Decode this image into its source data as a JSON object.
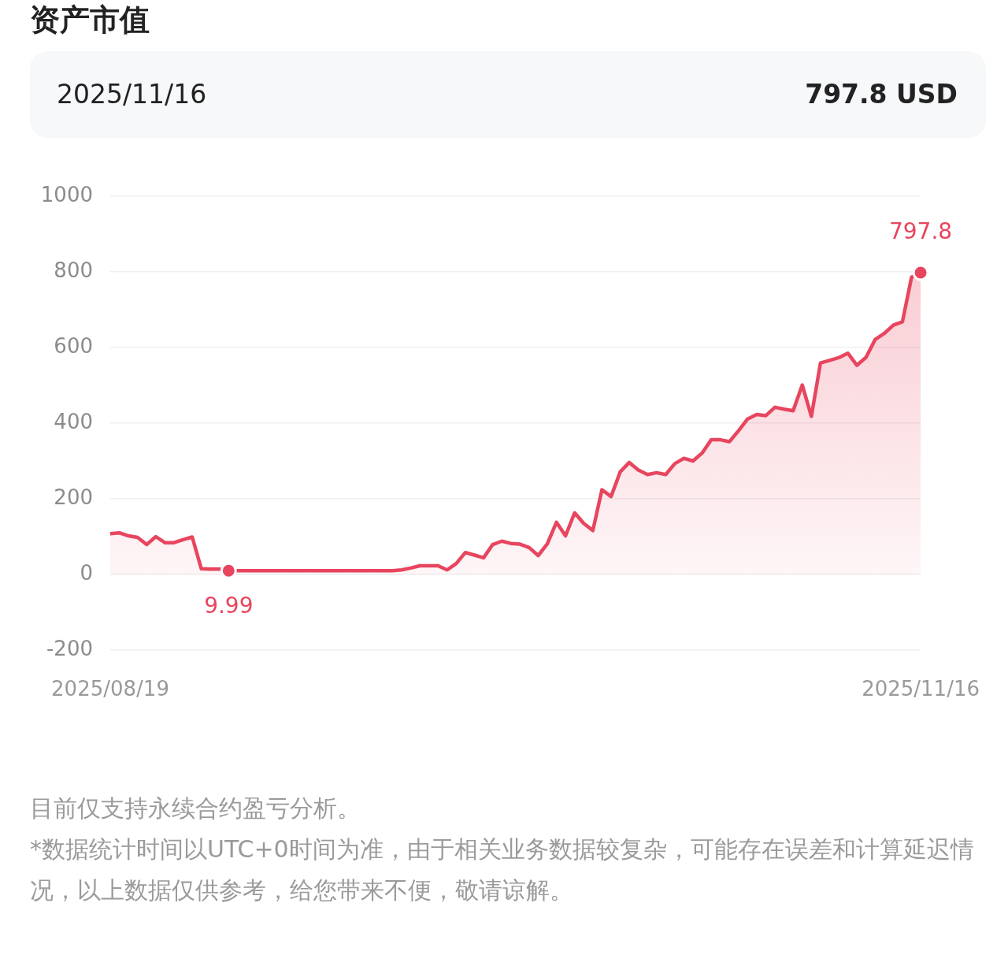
{
  "chart_data": {
    "type": "area",
    "title": "资产市值",
    "subtitle": "2025/11/16",
    "annotations": [
      "797.8 USD",
      {
        "text": "797.8",
        "x": "2025-11-16",
        "y": 797.8
      },
      {
        "text": "9.99",
        "x": "2025-09-01",
        "y": 9.99
      },
      "目前仅支持永续合约盈亏分析。",
      "*数据统计时间以UTC+0时间为准，由于相关业务数据较复杂，可能存在误差和计算延迟情况，以上数据仅供参考，给您带来不便，敬请谅解。"
    ],
    "x": [
      "2025-08-19",
      "2025-08-20",
      "2025-08-21",
      "2025-08-22",
      "2025-08-23",
      "2025-08-24",
      "2025-08-25",
      "2025-08-26",
      "2025-08-27",
      "2025-08-28",
      "2025-08-29",
      "2025-08-30",
      "2025-08-31",
      "2025-09-01",
      "2025-09-19",
      "2025-09-20",
      "2025-09-21",
      "2025-09-22",
      "2025-09-23",
      "2025-09-24",
      "2025-09-25",
      "2025-09-26",
      "2025-09-27",
      "2025-09-28",
      "2025-09-29",
      "2025-09-30",
      "2025-10-01",
      "2025-10-02",
      "2025-10-03",
      "2025-10-04",
      "2025-10-05",
      "2025-10-06",
      "2025-10-07",
      "2025-10-08",
      "2025-10-09",
      "2025-10-10",
      "2025-10-11",
      "2025-10-12",
      "2025-10-13",
      "2025-10-14",
      "2025-10-15",
      "2025-10-16",
      "2025-10-17",
      "2025-10-18",
      "2025-10-19",
      "2025-10-20",
      "2025-10-21",
      "2025-10-22",
      "2025-10-23",
      "2025-10-24",
      "2025-10-25",
      "2025-10-26",
      "2025-10-27",
      "2025-10-28",
      "2025-10-29",
      "2025-10-30",
      "2025-10-31",
      "2025-11-01",
      "2025-11-02",
      "2025-11-03",
      "2025-11-04",
      "2025-11-05",
      "2025-11-06",
      "2025-11-07",
      "2025-11-08",
      "2025-11-09",
      "2025-11-10",
      "2025-11-11",
      "2025-11-12",
      "2025-11-13",
      "2025-11-14",
      "2025-11-15",
      "2025-11-16"
    ],
    "values": [
      108,
      110,
      102,
      98,
      79,
      100,
      84,
      84,
      92,
      99,
      15,
      14,
      14,
      9.99,
      10,
      12,
      17,
      23,
      23,
      23,
      12,
      29,
      58,
      51,
      44,
      79,
      88,
      82,
      80,
      71,
      50,
      81,
      138,
      102,
      163,
      135,
      116,
      224,
      206,
      271,
      296,
      276,
      264,
      269,
      264,
      293,
      307,
      300,
      321,
      356,
      356,
      351,
      380,
      411,
      423,
      420,
      442,
      437,
      433,
      501,
      418,
      559,
      566,
      573,
      585,
      553,
      574,
      621,
      637,
      659,
      668,
      786,
      797.8
    ],
    "color": "#e8455e",
    "xlim": [
      "2025-08-19",
      "2025-11-16"
    ],
    "xticks": [
      {
        "value": "2025-08-19",
        "label": "2025/08/19"
      },
      {
        "value": "2025-11-16",
        "label": "2025/11/16"
      }
    ],
    "ylim": [
      -200,
      1000
    ],
    "yticks": [
      -200,
      0,
      200,
      400,
      600,
      800,
      1000
    ],
    "grid": "y"
  }
}
